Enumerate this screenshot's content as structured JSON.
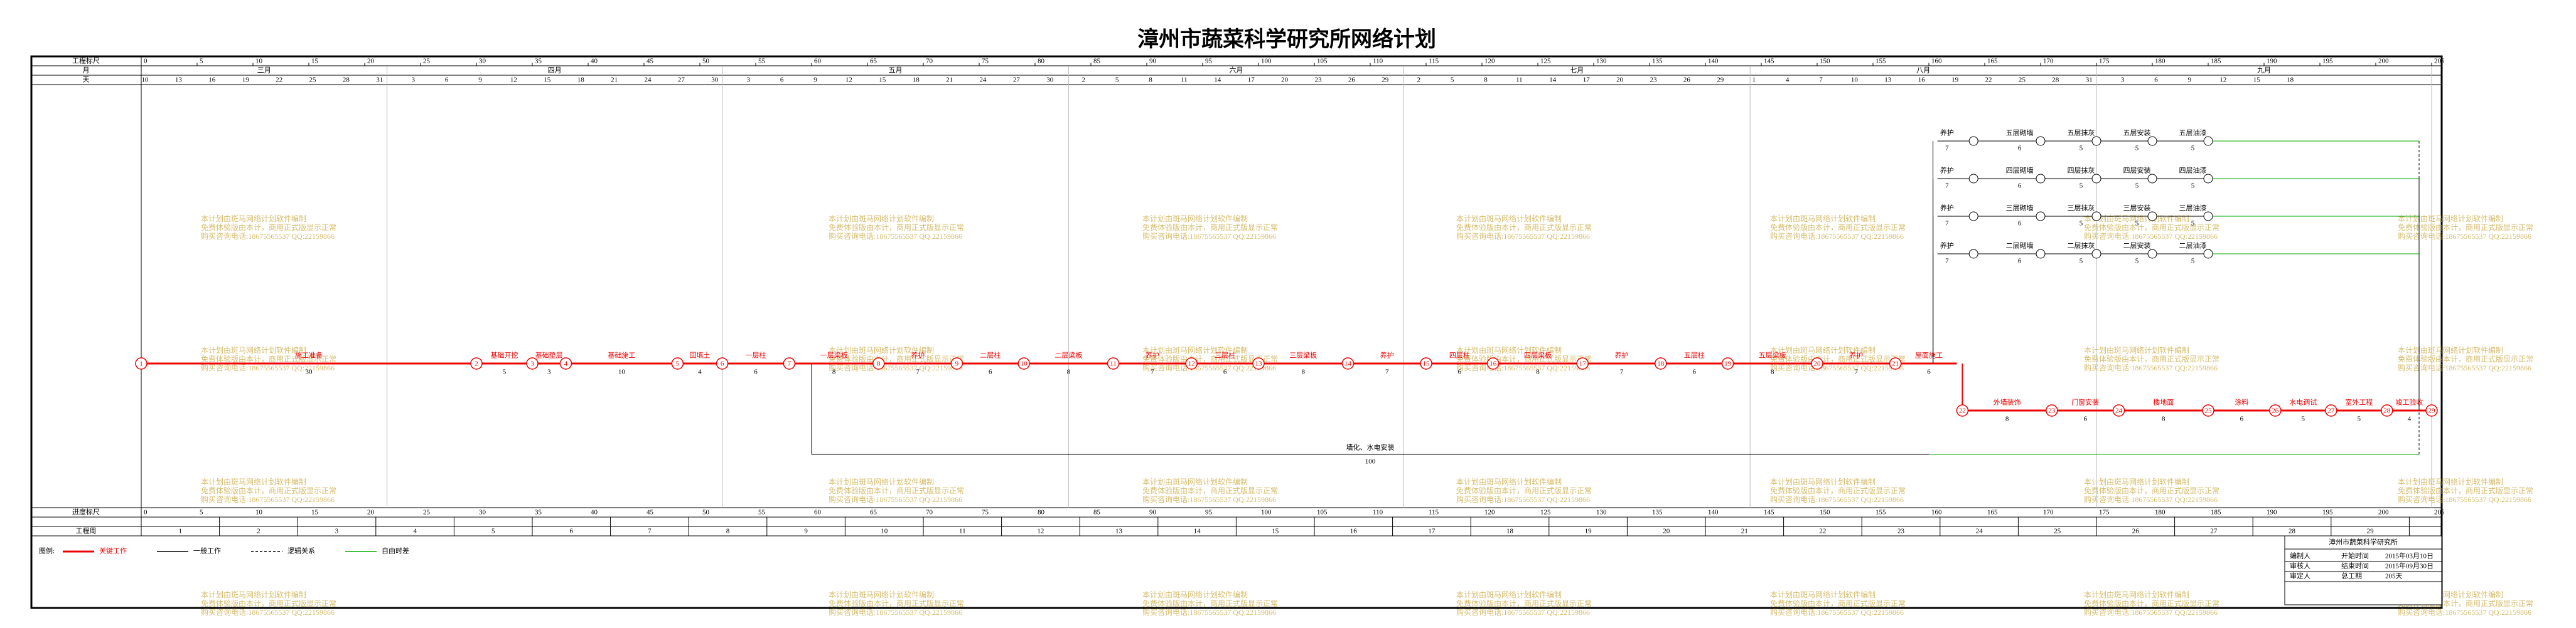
{
  "title": "漳州市蔬菜科学研究所网络计划",
  "row_labels": {
    "scale": "工程标尺",
    "month": "月",
    "day": "天",
    "progress": "进度标尺",
    "week": "工程周"
  },
  "scale_ticks": [
    0,
    5,
    10,
    15,
    20,
    25,
    30,
    35,
    40,
    45,
    50,
    55,
    60,
    65,
    70,
    75,
    80,
    85,
    90,
    95,
    100,
    105,
    110,
    115,
    120,
    125,
    130,
    135,
    140,
    145,
    150,
    155,
    160,
    165,
    170,
    175,
    180,
    185,
    190,
    195,
    200,
    205
  ],
  "months": [
    "三月",
    "四月",
    "五月",
    "六月",
    "七月",
    "八月",
    "九月"
  ],
  "date_ticks": [
    10,
    13,
    16,
    19,
    22,
    25,
    28,
    31,
    3,
    6,
    9,
    12,
    15,
    18,
    21,
    24,
    27,
    30,
    3,
    6,
    9,
    12,
    15,
    18,
    21,
    24,
    27,
    30,
    2,
    5,
    8,
    11,
    14,
    17,
    20,
    23,
    26,
    29,
    2,
    5,
    8,
    11,
    14,
    17,
    20,
    23,
    26,
    29,
    1,
    4,
    7,
    10,
    13,
    16,
    19,
    22,
    25,
    28,
    31,
    3,
    6,
    9,
    12,
    15,
    18
  ],
  "weeks": [
    1,
    2,
    3,
    4,
    5,
    6,
    7,
    8,
    9,
    10,
    11,
    12,
    13,
    14,
    15,
    16,
    17,
    18,
    19,
    20,
    21,
    22,
    23,
    24,
    25,
    26,
    27,
    28,
    29
  ],
  "main_tasks": [
    {
      "name": "施工准备",
      "duration": 30
    },
    {
      "name": "基础开挖",
      "duration": 5
    },
    {
      "name": "基础垫层",
      "duration": 3
    },
    {
      "name": "基础施工",
      "duration": 10
    },
    {
      "name": "回填土",
      "duration": 4
    },
    {
      "name": "一层柱",
      "duration": 6
    },
    {
      "name": "一层梁板",
      "duration": 8
    },
    {
      "name": "养护",
      "duration": 7
    },
    {
      "name": "二层柱",
      "duration": 6
    },
    {
      "name": "二层梁板",
      "duration": 8
    },
    {
      "name": "养护",
      "duration": 7
    },
    {
      "name": "三层柱",
      "duration": 6
    },
    {
      "name": "三层梁板",
      "duration": 8
    },
    {
      "name": "养护",
      "duration": 7
    },
    {
      "name": "四层柱",
      "duration": 6
    },
    {
      "name": "四层梁板",
      "duration": 8
    },
    {
      "name": "养护",
      "duration": 7
    },
    {
      "name": "五层柱",
      "duration": 6
    },
    {
      "name": "五层梁板",
      "duration": 8
    },
    {
      "name": "养护",
      "duration": 7
    },
    {
      "name": "屋面施工",
      "duration": 6
    },
    {
      "name": "外墙装饰",
      "duration": 8
    },
    {
      "name": "门窗安装",
      "duration": 6
    },
    {
      "name": "楼地面",
      "duration": 8
    },
    {
      "name": "涂料",
      "duration": 6
    },
    {
      "name": "水电调试",
      "duration": 5
    },
    {
      "name": "室外工程",
      "duration": 5
    },
    {
      "name": "竣工验收",
      "duration": 4
    }
  ],
  "node_labels": [
    1,
    2,
    3,
    4,
    5,
    6,
    7,
    8,
    9,
    10,
    11,
    12,
    13,
    14,
    15,
    16,
    17,
    18,
    19,
    20,
    21,
    22,
    23,
    24,
    25,
    26,
    27,
    28,
    29
  ],
  "branches": [
    {
      "tasks": [
        {
          "name": "养护",
          "duration": 7
        },
        {
          "name": "五层砌墙",
          "duration": 6
        },
        {
          "name": "五层抹灰",
          "duration": 5
        },
        {
          "name": "五层安装",
          "duration": 5
        },
        {
          "name": "五层油漆",
          "duration": 5
        }
      ]
    },
    {
      "tasks": [
        {
          "name": "养护",
          "duration": 7
        },
        {
          "name": "四层砌墙",
          "duration": 6
        },
        {
          "name": "四层抹灰",
          "duration": 5
        },
        {
          "name": "四层安装",
          "duration": 5
        },
        {
          "name": "四层油漆",
          "duration": 5
        }
      ]
    },
    {
      "tasks": [
        {
          "name": "养护",
          "duration": 7
        },
        {
          "name": "三层砌墙",
          "duration": 6
        },
        {
          "name": "三层抹灰",
          "duration": 5
        },
        {
          "name": "三层安装",
          "duration": 5
        },
        {
          "name": "三层油漆",
          "duration": 5
        }
      ]
    },
    {
      "tasks": [
        {
          "name": "养护",
          "duration": 7
        },
        {
          "name": "二层砌墙",
          "duration": 6
        },
        {
          "name": "二层抹灰",
          "duration": 5
        },
        {
          "name": "二层安装",
          "duration": 5
        },
        {
          "name": "二层油漆",
          "duration": 5
        }
      ]
    }
  ],
  "long_task": {
    "name": "墙化、水电安装",
    "duration": 100
  },
  "legend": {
    "title": "图例:",
    "items": [
      "关键工作",
      "一般工作",
      "逻辑关系",
      "自由时差"
    ]
  },
  "info": {
    "title": "漳州市蔬菜科学研究所",
    "rows": [
      [
        "编制人",
        "开始时间",
        "2015年03月10日"
      ],
      [
        "审核人",
        "结束时间",
        "2015年09月30日"
      ],
      [
        "审定人",
        "总工期",
        "205天"
      ]
    ]
  },
  "watermark": [
    "本计划由斑马网络计划软件编制",
    "免费体验版由本计，商用正式版显示正常",
    "购买咨询电话:18675565537 QQ:22159866"
  ]
}
